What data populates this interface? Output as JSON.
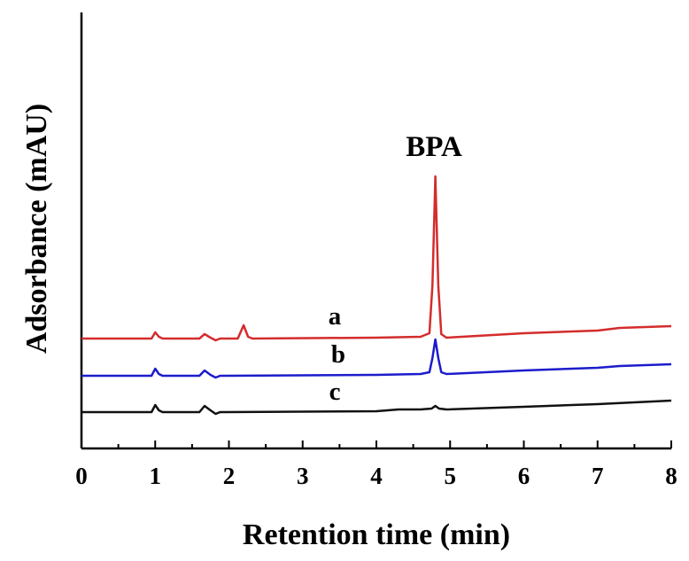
{
  "chart_data": {
    "type": "line",
    "xlabel": "Retention time (min)",
    "ylabel": "Adsorbance (mAU)",
    "xlim": [
      0,
      8
    ],
    "x_ticks": [
      "0",
      "1",
      "2",
      "3",
      "4",
      "5",
      "6",
      "7",
      "8"
    ],
    "grid": false,
    "annotations": [
      {
        "text": "BPA",
        "x": 4.8
      }
    ],
    "series": [
      {
        "label": "a",
        "color": "#d42c2c",
        "values": [
          [
            0,
            0
          ],
          [
            0.95,
            0
          ],
          [
            1.0,
            7
          ],
          [
            1.05,
            2
          ],
          [
            1.1,
            0
          ],
          [
            1.6,
            0
          ],
          [
            1.67,
            5
          ],
          [
            1.75,
            1
          ],
          [
            1.82,
            -2
          ],
          [
            1.88,
            0
          ],
          [
            2.12,
            0
          ],
          [
            2.2,
            15
          ],
          [
            2.26,
            2
          ],
          [
            2.32,
            0
          ],
          [
            4.0,
            1
          ],
          [
            4.6,
            2
          ],
          [
            4.72,
            6
          ],
          [
            4.76,
            60
          ],
          [
            4.8,
            183
          ],
          [
            4.84,
            60
          ],
          [
            4.88,
            5
          ],
          [
            4.95,
            1
          ],
          [
            6.0,
            6
          ],
          [
            7.0,
            9
          ],
          [
            7.3,
            12
          ],
          [
            8.0,
            14
          ]
        ]
      },
      {
        "label": "b",
        "color": "#1c1ccc",
        "values": [
          [
            0,
            0
          ],
          [
            0.95,
            0
          ],
          [
            1.0,
            8
          ],
          [
            1.05,
            2
          ],
          [
            1.1,
            0
          ],
          [
            1.6,
            0
          ],
          [
            1.67,
            6
          ],
          [
            1.75,
            1
          ],
          [
            1.82,
            -2
          ],
          [
            1.88,
            0
          ],
          [
            4.0,
            1
          ],
          [
            4.6,
            2
          ],
          [
            4.72,
            4
          ],
          [
            4.76,
            20
          ],
          [
            4.8,
            41
          ],
          [
            4.84,
            20
          ],
          [
            4.88,
            4
          ],
          [
            4.95,
            2
          ],
          [
            6.0,
            6
          ],
          [
            7.0,
            9
          ],
          [
            7.3,
            11
          ],
          [
            8.0,
            13
          ]
        ]
      },
      {
        "label": "c",
        "color": "#111111",
        "values": [
          [
            0,
            0
          ],
          [
            0.95,
            0
          ],
          [
            1.0,
            8
          ],
          [
            1.05,
            2
          ],
          [
            1.1,
            0
          ],
          [
            1.6,
            0
          ],
          [
            1.67,
            7
          ],
          [
            1.75,
            2
          ],
          [
            1.82,
            -2
          ],
          [
            1.88,
            0
          ],
          [
            4.0,
            1
          ],
          [
            4.3,
            3
          ],
          [
            4.6,
            3
          ],
          [
            4.75,
            4
          ],
          [
            4.8,
            7
          ],
          [
            4.85,
            4
          ],
          [
            4.95,
            3
          ],
          [
            6.0,
            6
          ],
          [
            7.0,
            9
          ],
          [
            8.0,
            13
          ]
        ]
      }
    ]
  }
}
